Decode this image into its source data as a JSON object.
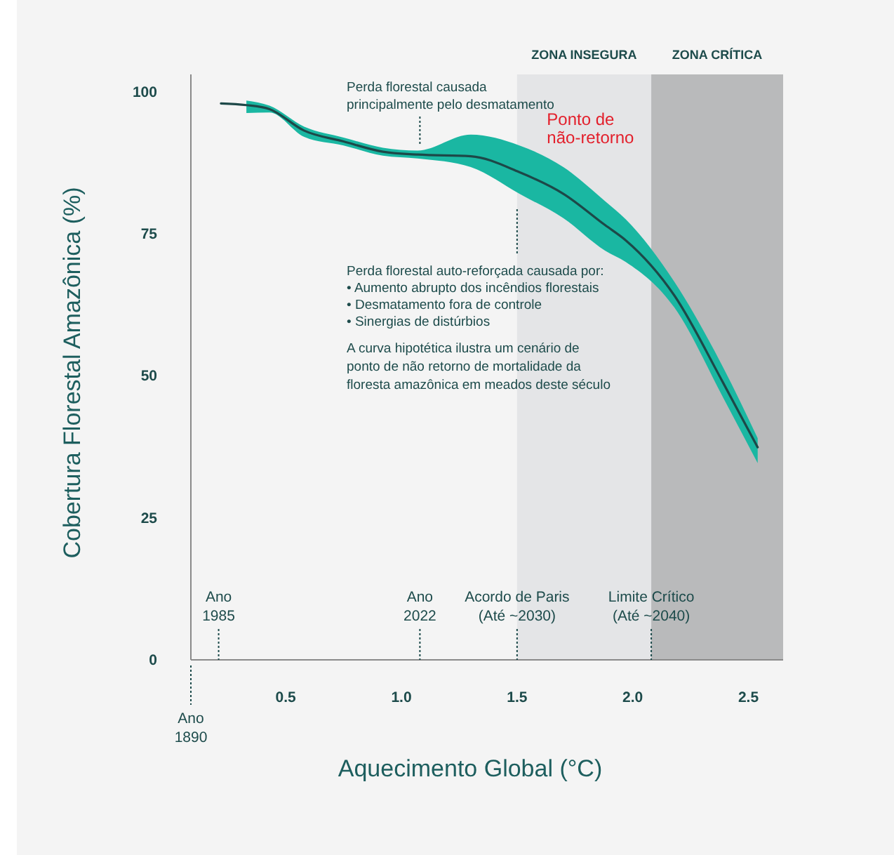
{
  "chart_data": {
    "type": "line",
    "xlabel": "Aquecimento Global (°C)",
    "ylabel": "Cobertura Florestal Amazônica (%)",
    "x": [
      0.22,
      0.33,
      0.43,
      0.58,
      0.75,
      0.92,
      1.07,
      1.3,
      1.51,
      1.7,
      1.88,
      1.97,
      2.18,
      2.39,
      2.54
    ],
    "series": [
      {
        "color": "#1d4848",
        "values": [
          97.9,
          97.6,
          96.9,
          93.1,
          91.2,
          89.4,
          88.9,
          88.6,
          85.8,
          82,
          76.5,
          73.8,
          64.1,
          48.8,
          37.4
        ],
        "upper": [
          null,
          98.4,
          97.5,
          93.8,
          91.9,
          90.1,
          89.6,
          92.4,
          90.5,
          86.7,
          80.7,
          77.5,
          66.5,
          51.5,
          39
        ],
        "lower": [
          null,
          96.2,
          96.3,
          92,
          90.5,
          88.7,
          88.2,
          86.7,
          82,
          77.7,
          72,
          70,
          62,
          46.2,
          34.6
        ]
      }
    ],
    "xlim": [
      0.09,
      2.65
    ],
    "xticks": [
      0.5,
      {
        "value": 1,
        "label": "1.0"
      },
      1.5,
      {
        "value": 2,
        "label": "2.0"
      },
      2.5
    ],
    "ylim": [
      0,
      103
    ],
    "yticks": [
      0,
      25,
      50,
      75,
      100
    ],
    "grid": false,
    "marker": "none",
    "line_style": "solid",
    "bands": [
      {
        "axis": "x",
        "from": 1.5,
        "to": 2.08,
        "label": "ZONA INSEGURA",
        "color": "#e4e5e7"
      },
      {
        "axis": "x",
        "from": 2.08,
        "to": 2.65,
        "label": "ZONA CRÍTICA",
        "color": "#b9babb"
      }
    ],
    "ref_lines": [
      {
        "axis": "x",
        "value": 0.09,
        "label": "Ano\n1890",
        "line_style": "dotted"
      },
      {
        "axis": "x",
        "value": 0.21,
        "label": "Ano\n1985",
        "line_style": "dotted"
      },
      {
        "axis": "x",
        "value": 1.08,
        "label": "Ano\n2022",
        "line_style": "dotted"
      },
      {
        "axis": "x",
        "value": 1.5,
        "label": "Acordo de Paris\n(Até ~2030)",
        "line_style": "dotted"
      },
      {
        "axis": "x",
        "value": 2.08,
        "label": "Limite Crítico\n(Até ~2040)",
        "line_style": "dotted"
      }
    ],
    "annotations": [
      {
        "text": "Perda florestal causada\nprincipalmente pelo desmatamento",
        "x": 1.08,
        "y": 89
      },
      {
        "text": "Ponto de\nnão-retorno",
        "x": 1.55,
        "y": 85
      },
      "Perda florestal auto-reforçada causada por:\n• Aumento abrupto dos incêndios florestais\n• Desmatamento fora de controle\n• Sinergias de distúrbios",
      "A curva hipotética ilustra um cenário de\nponto de não retorno de mortalidade da\nfloresta amazônica em meados deste século"
    ]
  }
}
